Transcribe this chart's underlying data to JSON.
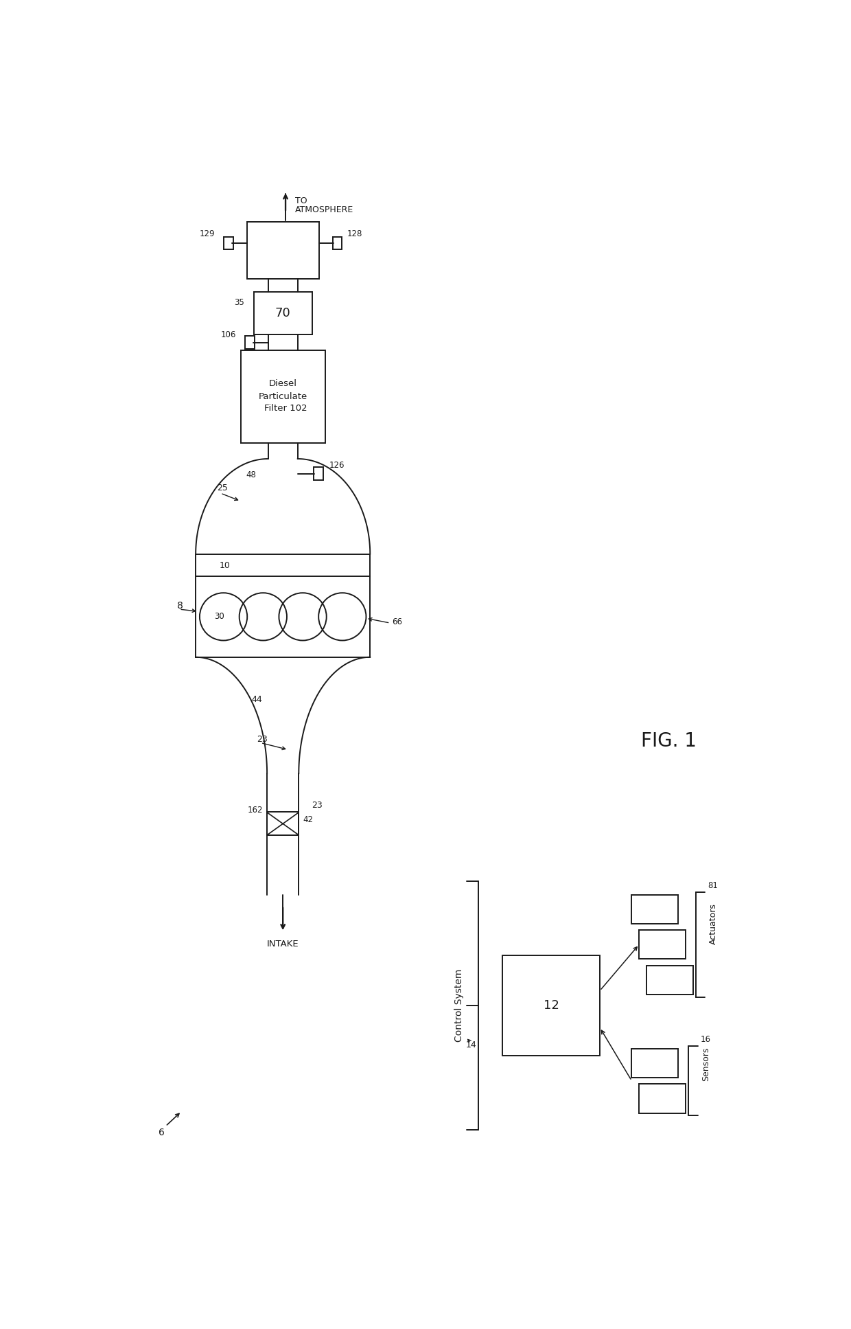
{
  "bg_color": "#ffffff",
  "line_color": "#1a1a1a",
  "fig_label": "FIG. 1",
  "lw": 1.4,
  "labels": {
    "intake": "INTAKE",
    "atmosphere_1": "TO",
    "atmosphere_2": "ATMOSPHERE",
    "dpf_line1": "Diesel",
    "dpf_line2": "Particulate",
    "dpf_line3": "Filter",
    "dpf_num": "102",
    "num_70": "70",
    "num_8": "8",
    "num_6": "6",
    "num_10": "10",
    "num_23": "23",
    "num_25": "25",
    "num_30": "30",
    "num_35": "35",
    "num_42": "42",
    "num_44": "44",
    "num_48": "48",
    "num_66": "66",
    "num_106": "106",
    "num_126": "126",
    "num_128": "128",
    "num_129": "129",
    "num_162": "162",
    "ctrl_sys": "Control System",
    "ctrl_num": "14",
    "num_12": "12",
    "num_81": "81",
    "actuators": "Actuators",
    "num_16": "16",
    "sensors": "Sensors"
  }
}
